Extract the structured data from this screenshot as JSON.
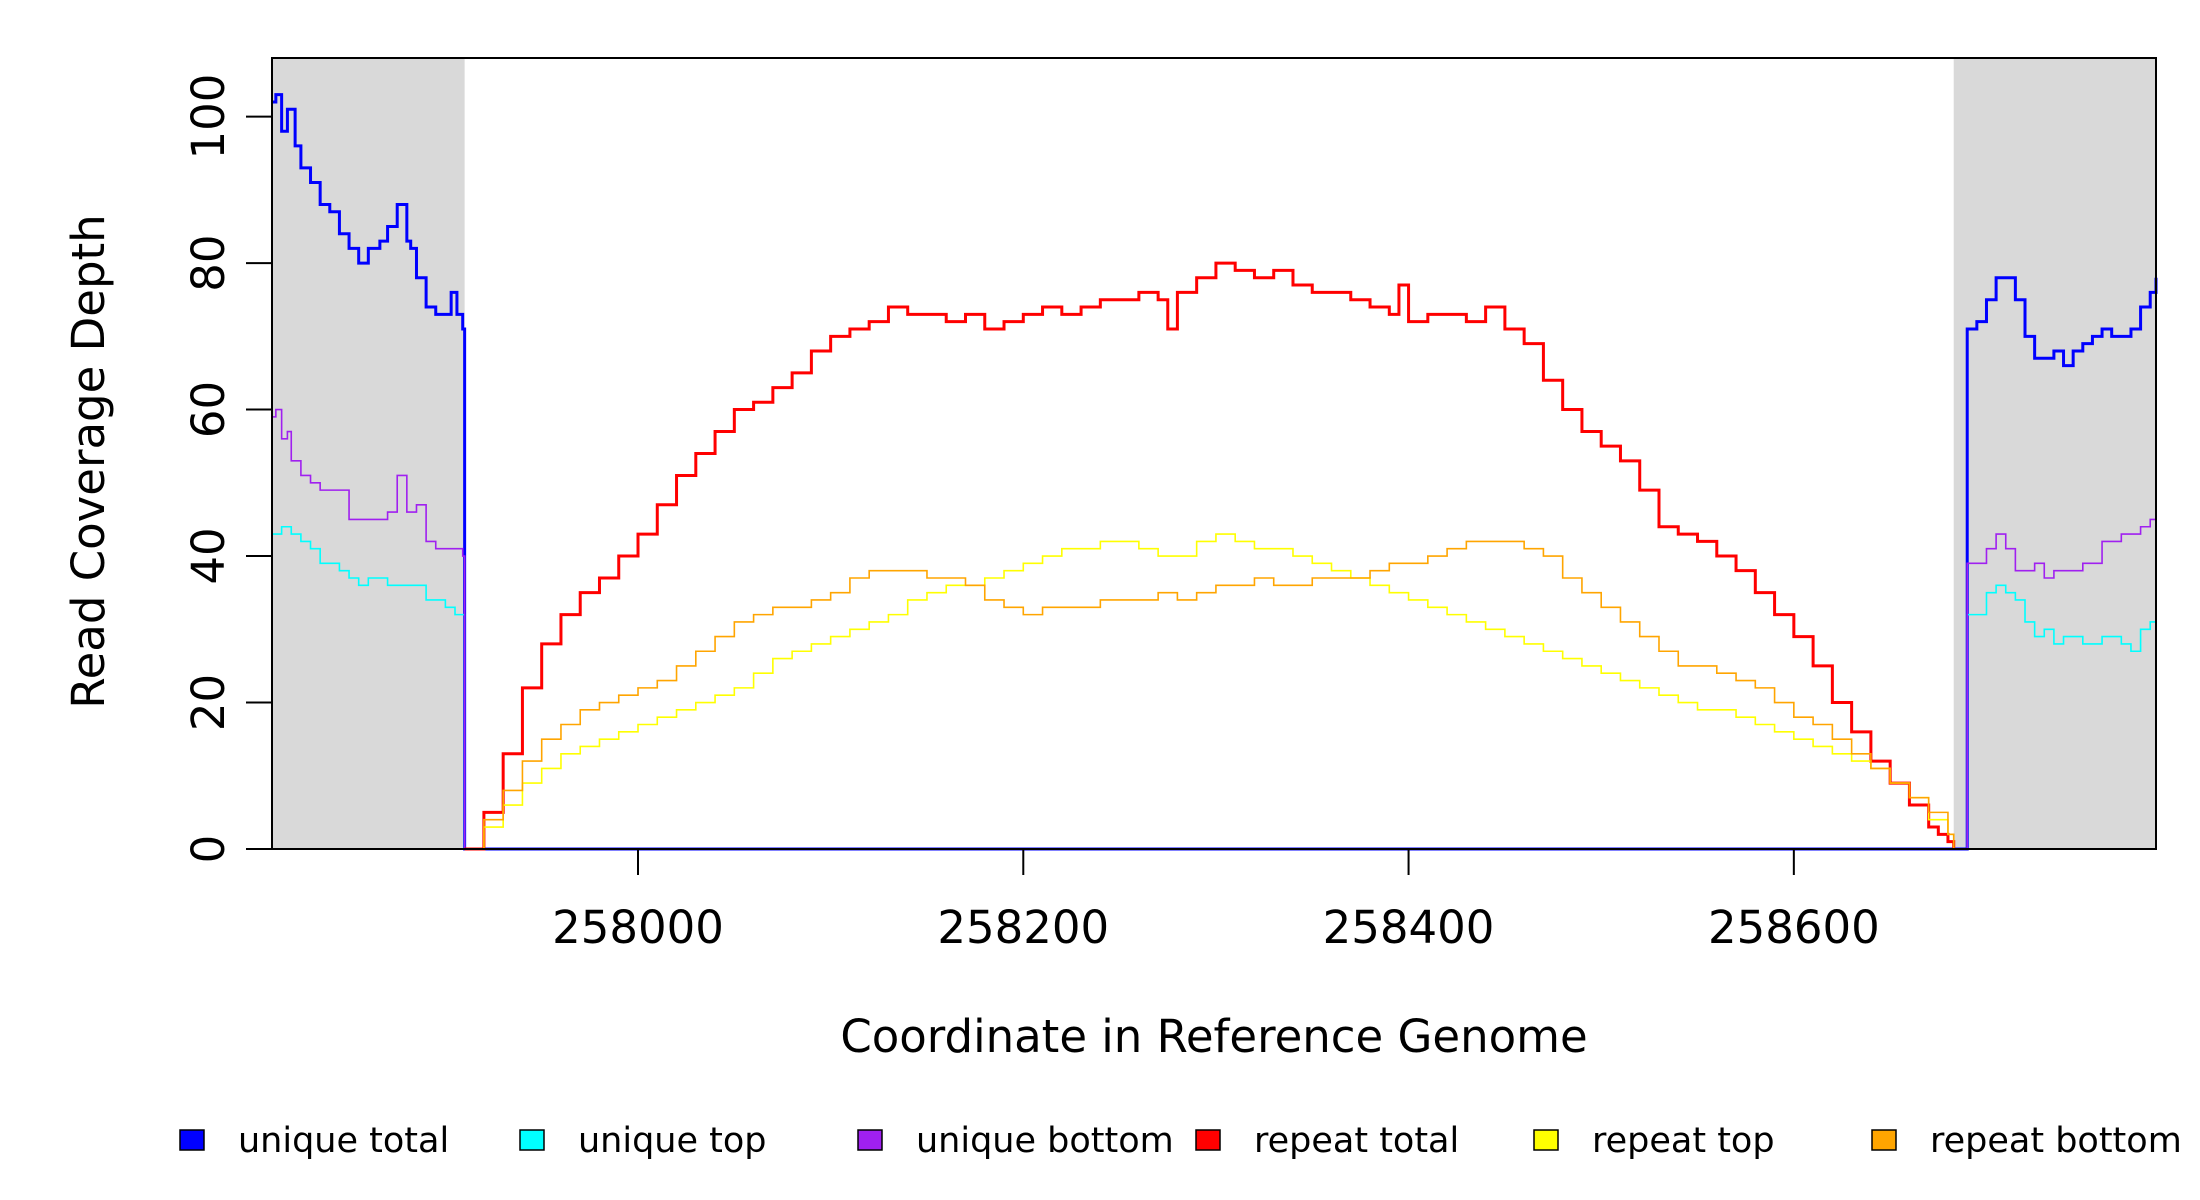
{
  "chart_data": {
    "type": "line",
    "title": "",
    "xlabel": "Coordinate in Reference Genome",
    "ylabel": "Read Coverage Depth",
    "xlim": [
      257810,
      258788
    ],
    "ylim": [
      0,
      108
    ],
    "x_ticks": [
      258000,
      258200,
      258400,
      258600
    ],
    "y_ticks": [
      0,
      20,
      40,
      60,
      80,
      100
    ],
    "grid": false,
    "legend_position": "bottom",
    "shaded_regions": [
      {
        "x0": 257810,
        "x1": 257910,
        "color": "#d9d9d9"
      },
      {
        "x0": 258683,
        "x1": 258788,
        "color": "#d9d9d9"
      }
    ],
    "series": [
      {
        "name": "unique total",
        "color": "#0000ff",
        "x": [
          257810,
          257812,
          257815,
          257818,
          257822,
          257825,
          257830,
          257835,
          257840,
          257845,
          257850,
          257855,
          257860,
          257866,
          257870,
          257875,
          257880,
          257882,
          257885,
          257890,
          257895,
          257900,
          257903,
          257906,
          257909,
          257910,
          258683,
          258690,
          258695,
          258700,
          258705,
          258710,
          258715,
          258720,
          258725,
          258730,
          258735,
          258740,
          258745,
          258750,
          258755,
          258760,
          258765,
          258770,
          258775,
          258780,
          258785,
          258788
        ],
        "y": [
          102,
          103,
          98,
          101,
          96,
          93,
          91,
          88,
          87,
          84,
          82,
          80,
          82,
          83,
          85,
          88,
          83,
          82,
          78,
          74,
          73,
          73,
          76,
          73,
          71,
          0,
          0,
          71,
          72,
          75,
          78,
          78,
          75,
          70,
          67,
          67,
          68,
          66,
          68,
          69,
          70,
          71,
          70,
          70,
          71,
          74,
          76,
          78
        ]
      },
      {
        "name": "unique top",
        "color": "#00ffff",
        "x": [
          257810,
          257815,
          257820,
          257825,
          257830,
          257835,
          257840,
          257845,
          257850,
          257855,
          257860,
          257870,
          257880,
          257890,
          257900,
          257905,
          257910,
          258683,
          258690,
          258700,
          258705,
          258710,
          258715,
          258720,
          258725,
          258730,
          258735,
          258740,
          258750,
          258760,
          258770,
          258775,
          258780,
          258785,
          258788
        ],
        "y": [
          43,
          44,
          43,
          42,
          41,
          39,
          39,
          38,
          37,
          36,
          37,
          36,
          36,
          34,
          33,
          32,
          0,
          0,
          32,
          35,
          36,
          35,
          34,
          31,
          29,
          30,
          28,
          29,
          28,
          29,
          28,
          27,
          30,
          31,
          33
        ]
      },
      {
        "name": "unique bottom",
        "color": "#a020f0",
        "x": [
          257810,
          257812,
          257815,
          257818,
          257820,
          257825,
          257830,
          257835,
          257840,
          257850,
          257860,
          257870,
          257875,
          257880,
          257885,
          257890,
          257895,
          257900,
          257905,
          257909,
          257910,
          258683,
          258690,
          258700,
          258705,
          258710,
          258715,
          258720,
          258725,
          258730,
          258735,
          258740,
          258750,
          258760,
          258770,
          258780,
          258785,
          258788
        ],
        "y": [
          59,
          60,
          56,
          57,
          53,
          51,
          50,
          49,
          49,
          45,
          45,
          46,
          51,
          46,
          47,
          42,
          41,
          41,
          41,
          40,
          0,
          0,
          39,
          41,
          43,
          41,
          38,
          38,
          39,
          37,
          38,
          38,
          39,
          42,
          43,
          44,
          45,
          45
        ]
      },
      {
        "name": "repeat total",
        "color": "#ff0000",
        "x": [
          257910,
          257920,
          257930,
          257940,
          257950,
          257960,
          257970,
          257980,
          257990,
          258000,
          258010,
          258020,
          258030,
          258040,
          258050,
          258060,
          258070,
          258080,
          258090,
          258100,
          258110,
          258120,
          258130,
          258140,
          258150,
          258160,
          258170,
          258180,
          258190,
          258200,
          258210,
          258220,
          258230,
          258240,
          258250,
          258260,
          258270,
          258275,
          258280,
          258290,
          258300,
          258310,
          258320,
          258330,
          258340,
          258350,
          258360,
          258370,
          258380,
          258390,
          258395,
          258400,
          258410,
          258420,
          258430,
          258440,
          258450,
          258460,
          258470,
          258480,
          258490,
          258500,
          258510,
          258520,
          258530,
          258540,
          258550,
          258560,
          258570,
          258580,
          258590,
          258600,
          258610,
          258620,
          258630,
          258640,
          258650,
          258660,
          258670,
          258675,
          258680,
          258683
        ],
        "y": [
          0,
          5,
          13,
          22,
          28,
          32,
          35,
          37,
          40,
          43,
          47,
          51,
          54,
          57,
          60,
          61,
          63,
          65,
          68,
          70,
          71,
          72,
          74,
          73,
          73,
          72,
          73,
          71,
          72,
          73,
          74,
          73,
          74,
          75,
          75,
          76,
          75,
          71,
          76,
          78,
          80,
          79,
          78,
          79,
          77,
          76,
          76,
          75,
          74,
          73,
          77,
          72,
          73,
          73,
          72,
          74,
          71,
          69,
          64,
          60,
          57,
          55,
          53,
          49,
          44,
          43,
          42,
          40,
          38,
          35,
          32,
          29,
          25,
          20,
          16,
          12,
          9,
          6,
          3,
          2,
          1,
          0
        ]
      },
      {
        "name": "repeat top",
        "color": "#ffff00",
        "x": [
          257910,
          257920,
          257930,
          257940,
          257950,
          257960,
          257970,
          257980,
          257990,
          258000,
          258010,
          258020,
          258030,
          258040,
          258050,
          258060,
          258070,
          258080,
          258090,
          258100,
          258110,
          258120,
          258130,
          258140,
          258150,
          258160,
          258170,
          258180,
          258190,
          258200,
          258210,
          258220,
          258230,
          258240,
          258250,
          258260,
          258270,
          258280,
          258290,
          258300,
          258310,
          258320,
          258330,
          258340,
          258350,
          258360,
          258370,
          258380,
          258390,
          258400,
          258410,
          258420,
          258430,
          258440,
          258450,
          258460,
          258470,
          258480,
          258490,
          258500,
          258510,
          258520,
          258530,
          258540,
          258550,
          258560,
          258570,
          258580,
          258590,
          258600,
          258610,
          258620,
          258630,
          258640,
          258650,
          258660,
          258670,
          258680,
          258683
        ],
        "y": [
          0,
          3,
          6,
          9,
          11,
          13,
          14,
          15,
          16,
          17,
          18,
          19,
          20,
          21,
          22,
          24,
          26,
          27,
          28,
          29,
          30,
          31,
          32,
          34,
          35,
          36,
          36,
          37,
          38,
          39,
          40,
          41,
          41,
          42,
          42,
          41,
          40,
          40,
          42,
          43,
          42,
          41,
          41,
          40,
          39,
          38,
          37,
          36,
          35,
          34,
          33,
          32,
          31,
          30,
          29,
          28,
          27,
          26,
          25,
          24,
          23,
          22,
          21,
          20,
          19,
          19,
          18,
          17,
          16,
          15,
          14,
          13,
          12,
          11,
          9,
          7,
          4,
          2,
          0
        ]
      },
      {
        "name": "repeat bottom",
        "color": "#ffa500",
        "x": [
          257910,
          257920,
          257930,
          257940,
          257950,
          257960,
          257970,
          257980,
          257990,
          258000,
          258010,
          258020,
          258030,
          258040,
          258050,
          258060,
          258070,
          258080,
          258090,
          258100,
          258110,
          258120,
          258130,
          258140,
          258150,
          258160,
          258170,
          258180,
          258190,
          258200,
          258210,
          258220,
          258230,
          258240,
          258250,
          258260,
          258270,
          258280,
          258290,
          258300,
          258310,
          258320,
          258330,
          258340,
          258350,
          258360,
          258370,
          258380,
          258390,
          258400,
          258410,
          258420,
          258430,
          258440,
          258450,
          258460,
          258470,
          258480,
          258490,
          258500,
          258510,
          258520,
          258530,
          258540,
          258550,
          258560,
          258570,
          258580,
          258590,
          258600,
          258610,
          258620,
          258630,
          258640,
          258650,
          258660,
          258670,
          258680,
          258683
        ],
        "y": [
          0,
          4,
          8,
          12,
          15,
          17,
          19,
          20,
          21,
          22,
          23,
          25,
          27,
          29,
          31,
          32,
          33,
          33,
          34,
          35,
          37,
          38,
          38,
          38,
          37,
          37,
          36,
          34,
          33,
          32,
          33,
          33,
          33,
          34,
          34,
          34,
          35,
          34,
          35,
          36,
          36,
          37,
          36,
          36,
          37,
          37,
          37,
          38,
          39,
          39,
          40,
          41,
          42,
          42,
          42,
          41,
          40,
          37,
          35,
          33,
          31,
          29,
          27,
          25,
          25,
          24,
          23,
          22,
          20,
          18,
          17,
          15,
          13,
          11,
          9,
          7,
          5,
          2,
          0
        ]
      }
    ]
  }
}
